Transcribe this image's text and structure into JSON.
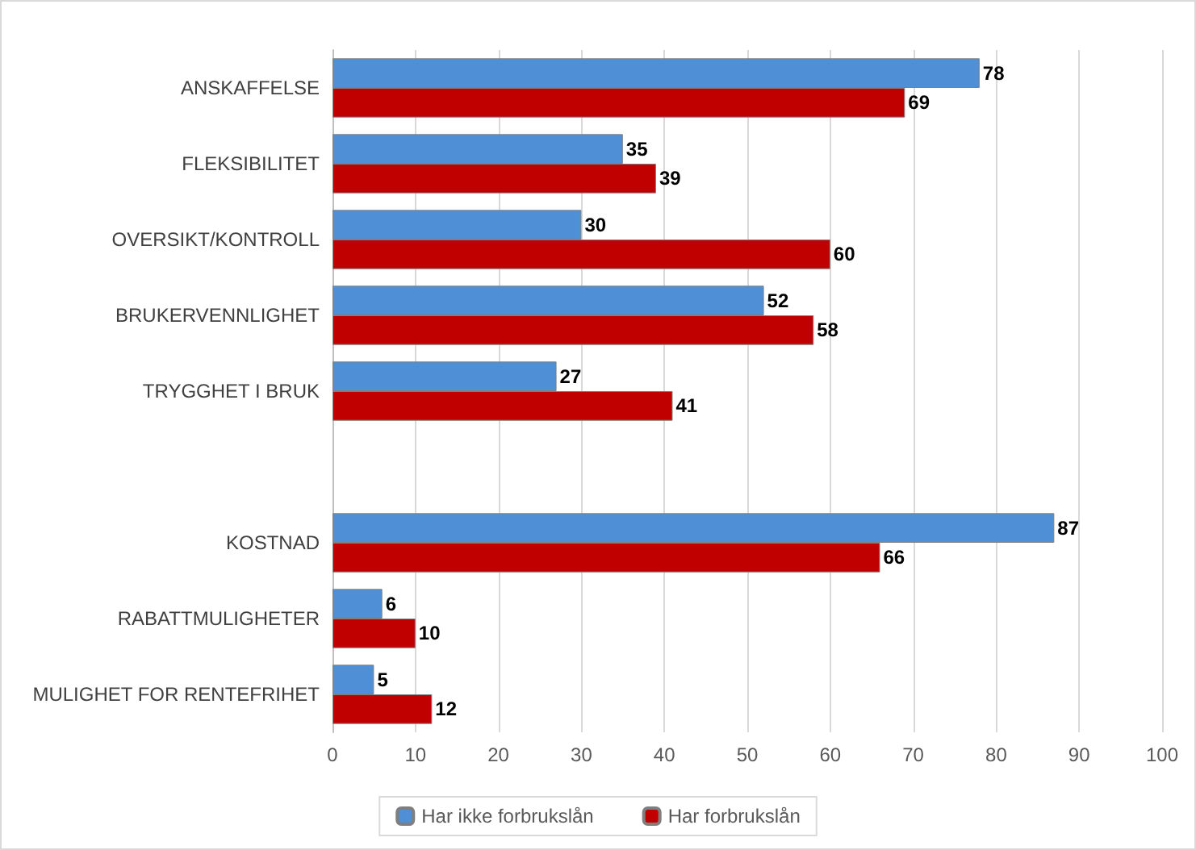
{
  "chart_data": {
    "type": "bar",
    "orientation": "horizontal",
    "categories": [
      "ANSKAFFELSE",
      "FLEKSIBILITET",
      "OVERSIKT/KONTROLL",
      "BRUKERVENNLIGHET",
      "TRYGGHET I BRUK",
      null,
      "KOSTNAD",
      "RABATTMULIGHETER",
      "MULIGHET FOR RENTEFRIHET"
    ],
    "series": [
      {
        "name": "Har ikke forbrukslån",
        "color": "#4f8fd6",
        "values": [
          78,
          35,
          30,
          52,
          27,
          null,
          87,
          6,
          5
        ]
      },
      {
        "name": "Har forbrukslån",
        "color": "#c00000",
        "values": [
          69,
          39,
          60,
          58,
          41,
          null,
          66,
          10,
          12
        ]
      }
    ],
    "xlim": [
      0,
      100
    ],
    "xticks": [
      0,
      10,
      20,
      30,
      40,
      50,
      60,
      70,
      80,
      90,
      100
    ],
    "grid": "x",
    "legend": "bottom",
    "data_labels": true
  }
}
